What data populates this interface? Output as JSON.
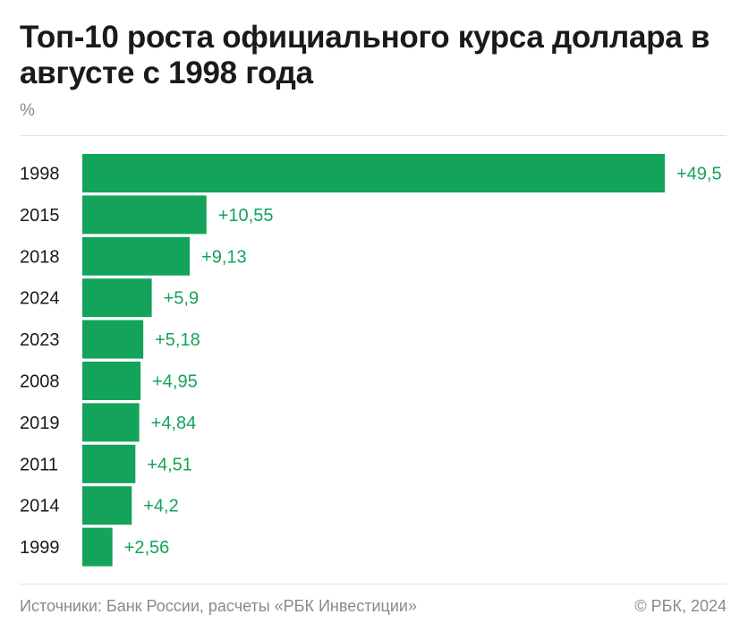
{
  "title": "Топ-10 роста официального курса доллара в августе с 1998 года",
  "unit_label": "%",
  "footer": {
    "source": "Источники: Банк России, расчеты «РБК Инвестиции»",
    "copyright": "© РБК, 2024"
  },
  "colors": {
    "bar": "#14a35a",
    "value_label": "#14a35a",
    "category_label": "#1a1a1a"
  },
  "chart_data": {
    "type": "bar",
    "orientation": "horizontal",
    "title": "Топ-10 роста официального курса доллара в августе с 1998 года",
    "ylabel": "%",
    "categories": [
      "1998",
      "2015",
      "2018",
      "2024",
      "2023",
      "2008",
      "2019",
      "2011",
      "2014",
      "1999"
    ],
    "values": [
      49.5,
      10.55,
      9.13,
      5.9,
      5.18,
      4.95,
      4.84,
      4.51,
      4.2,
      2.56
    ],
    "value_labels": [
      "+49,5",
      "+10,55",
      "+9,13",
      "+5,9",
      "+5,18",
      "+4,95",
      "+4,84",
      "+4,51",
      "+4,2",
      "+2,56"
    ],
    "xlim": [
      0,
      49.5
    ],
    "grid": false,
    "legend": "none"
  }
}
